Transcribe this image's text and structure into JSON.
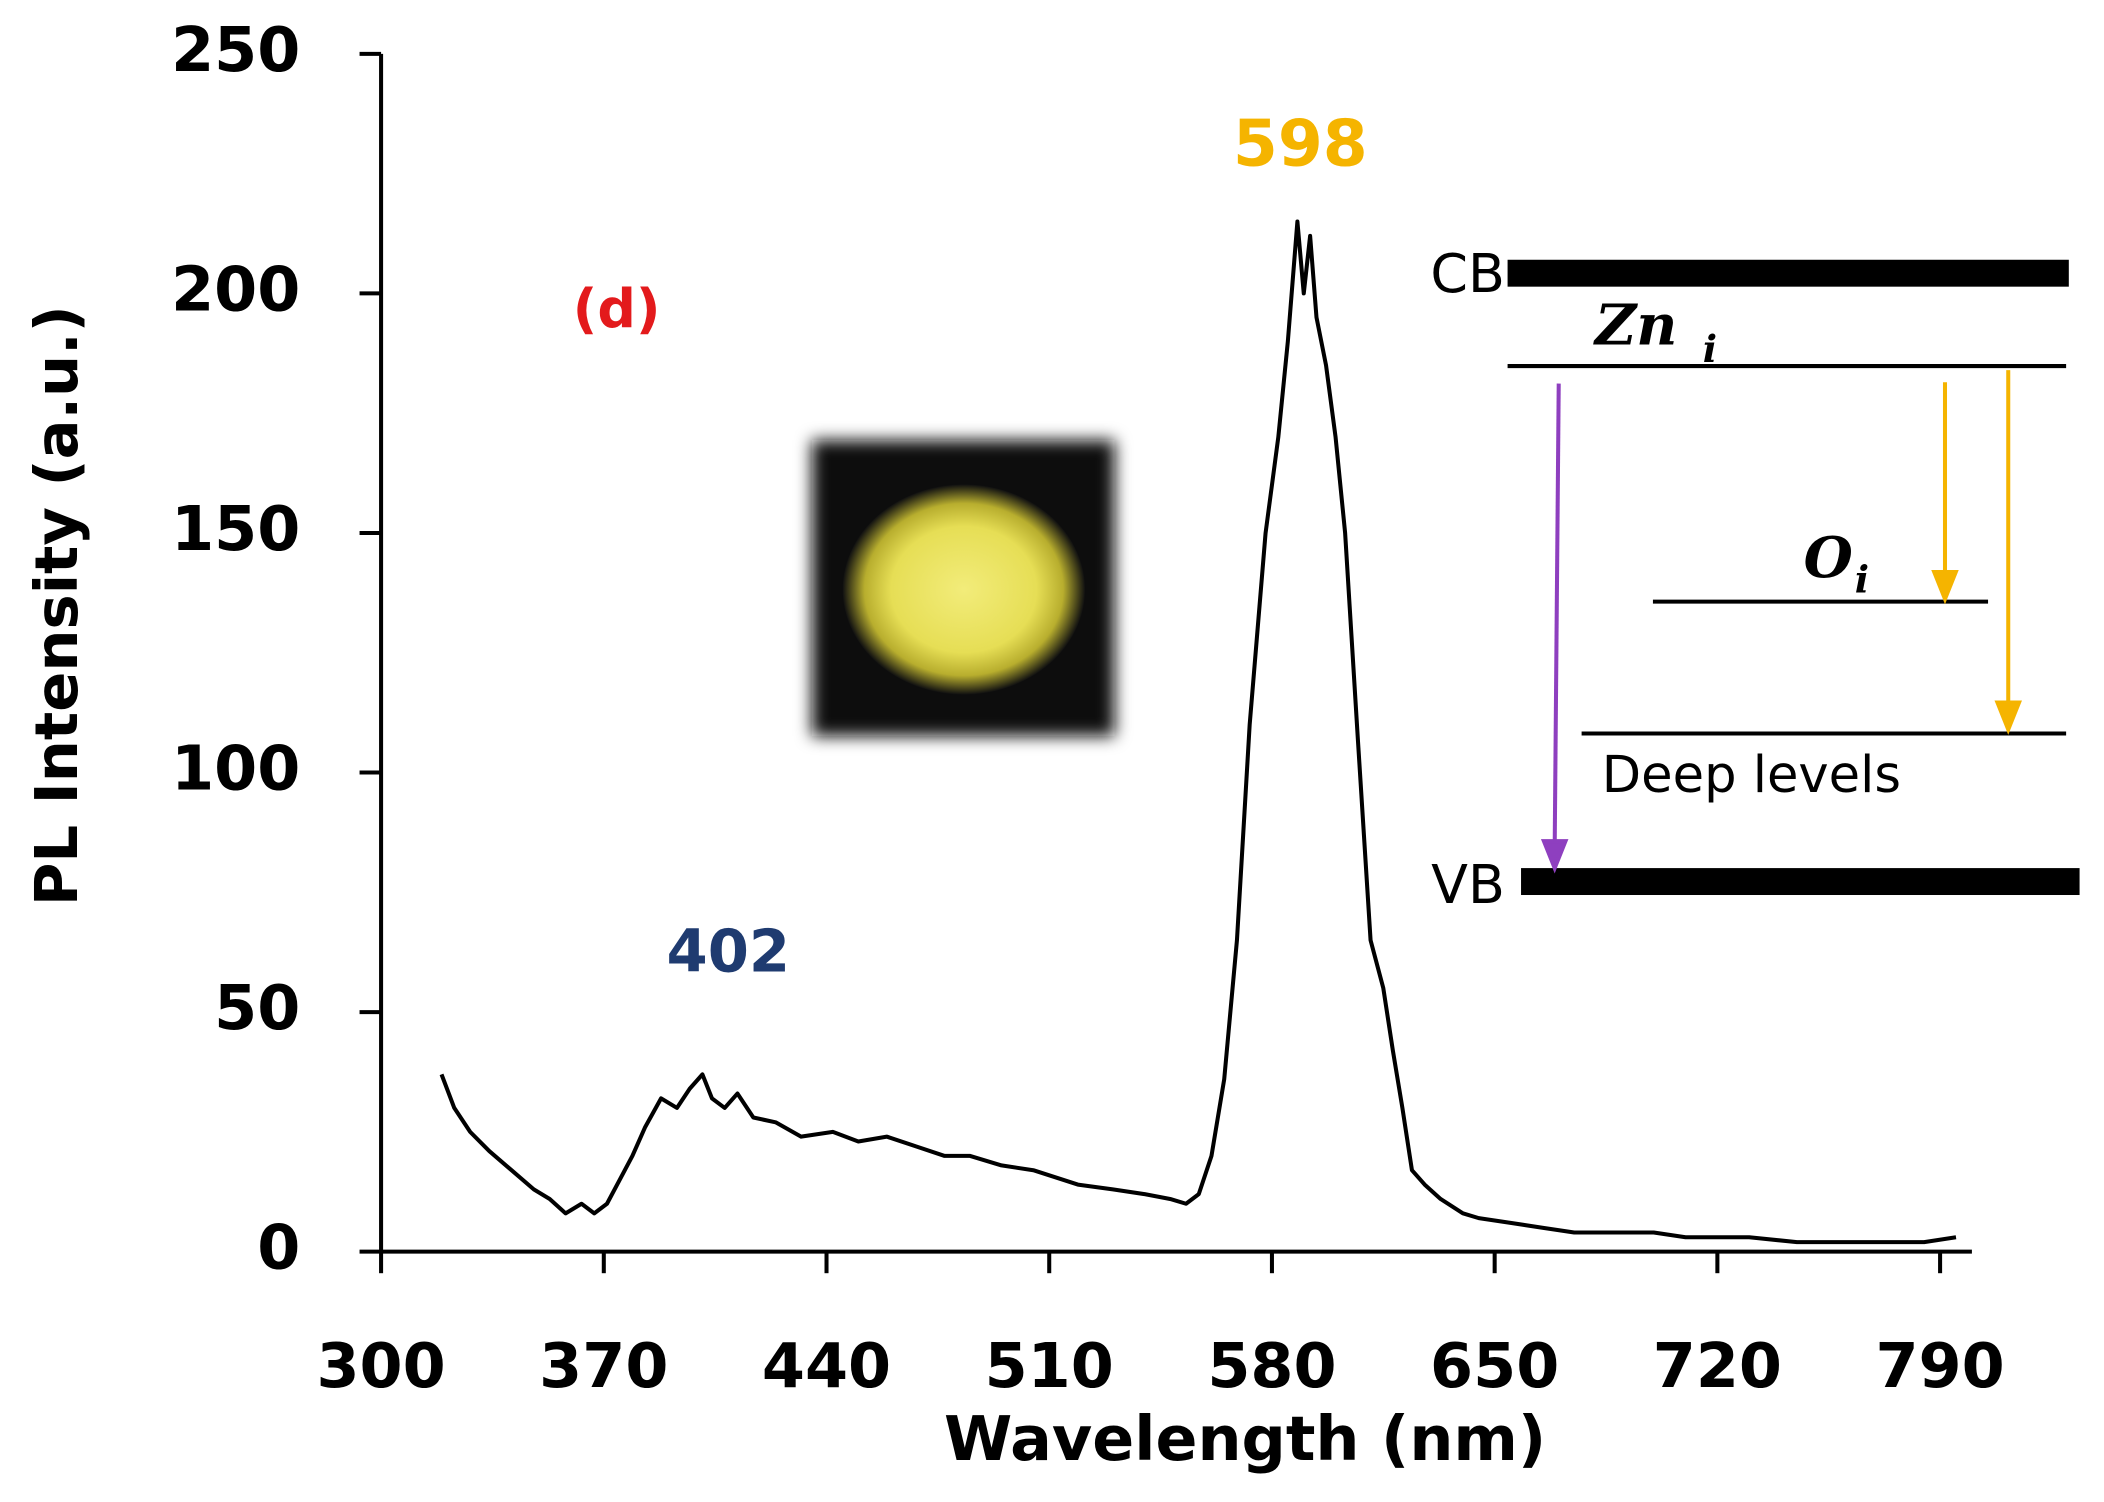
{
  "chart_data": {
    "type": "line",
    "x_label": "Wavelength (nm)",
    "y_label": "PL Intensity (a.u.)",
    "xlim": [
      300,
      800
    ],
    "ylim": [
      0,
      250
    ],
    "xticks": [
      300,
      370,
      440,
      510,
      580,
      650,
      720,
      790
    ],
    "yticks": [
      0,
      50,
      100,
      150,
      200,
      250
    ],
    "series": [
      {
        "name": "PL",
        "color": "#000000",
        "x": [
          319,
          323,
          328,
          334,
          341,
          348,
          353,
          358,
          363,
          367,
          371,
          375,
          379,
          383,
          388,
          393,
          397,
          401,
          404,
          408,
          412,
          417,
          424,
          432,
          442,
          450,
          459,
          468,
          477,
          485,
          495,
          505,
          519,
          530,
          540,
          548,
          553,
          557,
          561,
          565,
          569,
          573,
          578,
          582,
          585,
          588,
          590,
          592,
          594,
          597,
          600,
          603,
          607,
          611,
          615,
          618,
          621,
          624,
          628,
          633,
          640,
          645,
          655,
          665,
          675,
          688,
          700,
          710,
          720,
          730,
          745,
          760,
          772,
          785,
          795
        ],
        "values": [
          37,
          30,
          25,
          21,
          17,
          13,
          11,
          8,
          10,
          8,
          10,
          15,
          20,
          26,
          32,
          30,
          34,
          37,
          32,
          30,
          33,
          28,
          27,
          24,
          25,
          23,
          24,
          22,
          20,
          20,
          18,
          17,
          14,
          13,
          12,
          11,
          10,
          12,
          20,
          36,
          65,
          110,
          150,
          170,
          190,
          215,
          200,
          212,
          195,
          185,
          170,
          150,
          107,
          65,
          55,
          42,
          30,
          17,
          14,
          11,
          8,
          7,
          6,
          5,
          4,
          4,
          4,
          3,
          3,
          3,
          2,
          2,
          2,
          2,
          3
        ]
      }
    ],
    "annotations": [
      {
        "text": "(d)",
        "color": "#e31a1c"
      },
      {
        "text": "402",
        "color": "#1f3b70"
      },
      {
        "text": "598",
        "color": "#f5b400"
      }
    ],
    "diagram": {
      "cb": "CB",
      "vb": "VB",
      "zn": "Zn",
      "zn_sub": "i",
      "o": "O",
      "o_sub": "i",
      "deep": "Deep levels"
    }
  }
}
